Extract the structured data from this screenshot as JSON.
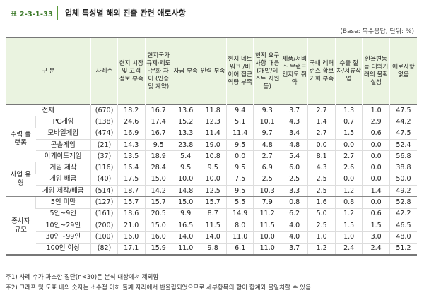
{
  "header": {
    "label": "표 2-3-1-33",
    "title": "업체 특성별 해외 진출 관련 애로사항"
  },
  "base": "(Base: 복수응답, 단위: %)",
  "table": {
    "columns": [
      "구 분",
      "사례수",
      "현지 시장 및 고객 정보 부족",
      "현지국가 규제·제도·문화 차이 (인증 및 계약)",
      "자금 부족",
      "인력 부족",
      "현지 네트워크 /비이어 접근 역량 부족",
      "현지 요구사항 대응 (개발/테스트 지원 등)",
      "제품/서비스 브랜드 인지도 취약",
      "국내 레퍼런스 확보 기회 부족",
      "수출 절차/서류작업",
      "환율변동 등 대외거래의 불확실성",
      "애로사항 없음"
    ],
    "total": {
      "label": "전체",
      "n": "(670)",
      "values": [
        "18.2",
        "16.7",
        "13.6",
        "11.8",
        "9.4",
        "9.3",
        "3.7",
        "2.7",
        "1.3",
        "1.0",
        "47.5"
      ]
    },
    "groups": [
      {
        "label": "주력 플랫폼",
        "rows": [
          {
            "label": "PC게임",
            "n": "(138)",
            "values": [
              "24.6",
              "17.4",
              "15.2",
              "12.3",
              "5.1",
              "10.1",
              "4.3",
              "1.4",
              "0.7",
              "2.9",
              "44.2"
            ]
          },
          {
            "label": "모바일게임",
            "n": "(474)",
            "values": [
              "16.9",
              "16.7",
              "13.3",
              "11.4",
              "11.4",
              "9.7",
              "3.4",
              "2.7",
              "1.5",
              "0.6",
              "47.5"
            ]
          },
          {
            "label": "콘솔게임",
            "n": "(21)",
            "values": [
              "14.3",
              "9.5",
              "23.8",
              "19.0",
              "9.5",
              "4.8",
              "4.8",
              "0.0",
              "0.0",
              "0.0",
              "52.4"
            ]
          },
          {
            "label": "아케이드게임",
            "n": "(37)",
            "values": [
              "13.5",
              "18.9",
              "5.4",
              "10.8",
              "0.0",
              "2.7",
              "5.4",
              "8.1",
              "2.7",
              "0.0",
              "56.8"
            ]
          }
        ]
      },
      {
        "label": "사업 유형",
        "rows": [
          {
            "label": "게임 제작",
            "n": "(116)",
            "values": [
              "16.4",
              "28.4",
              "9.5",
              "9.5",
              "9.5",
              "6.9",
              "6.0",
              "4.3",
              "2.6",
              "0.0",
              "38.8"
            ]
          },
          {
            "label": "게임 배급",
            "n": "(40)",
            "values": [
              "17.5",
              "15.0",
              "10.0",
              "10.0",
              "7.5",
              "2.5",
              "2.5",
              "2.5",
              "0.0",
              "0.0",
              "50.0"
            ]
          },
          {
            "label": "게임 제작/배급",
            "n": "(514)",
            "values": [
              "18.7",
              "14.2",
              "14.8",
              "12.5",
              "9.5",
              "10.3",
              "3.3",
              "2.5",
              "1.2",
              "1.4",
              "49.2"
            ]
          }
        ]
      },
      {
        "label": "종사자 규모",
        "rows": [
          {
            "label": "5인 미만",
            "n": "(127)",
            "values": [
              "15.7",
              "15.7",
              "15.0",
              "15.7",
              "5.5",
              "7.9",
              "0.8",
              "1.6",
              "0.8",
              "0.0",
              "52.8"
            ]
          },
          {
            "label": "5인~9인",
            "n": "(161)",
            "values": [
              "18.6",
              "20.5",
              "9.9",
              "8.7",
              "14.9",
              "11.2",
              "6.2",
              "5.0",
              "1.2",
              "0.6",
              "42.2"
            ]
          },
          {
            "label": "10인~29인",
            "n": "(200)",
            "values": [
              "21.0",
              "15.0",
              "16.5",
              "11.5",
              "8.0",
              "11.5",
              "4.0",
              "2.5",
              "1.5",
              "1.5",
              "46.5"
            ]
          },
          {
            "label": "30인~99인",
            "n": "(100)",
            "values": [
              "16.0",
              "16.0",
              "14.0",
              "14.0",
              "11.0",
              "10.0",
              "4.0",
              "1.0",
              "1.0",
              "3.0",
              "48.0"
            ]
          },
          {
            "label": "100인 이상",
            "n": "(82)",
            "values": [
              "17.1",
              "15.9",
              "11.0",
              "9.8",
              "6.1",
              "11.0",
              "3.7",
              "1.2",
              "2.4",
              "2.4",
              "51.2"
            ]
          }
        ]
      }
    ]
  },
  "notes": [
    "주1) 사례 수가 과소한 집단(n<30)은 분석 대상에서 제외함",
    "주2) 그래프 및 도표 내의 숫자는 소수점 이하 둘째 자리에서 반올림되었으므로 세부항목의 합이 합계와 불일치할 수 있음"
  ]
}
